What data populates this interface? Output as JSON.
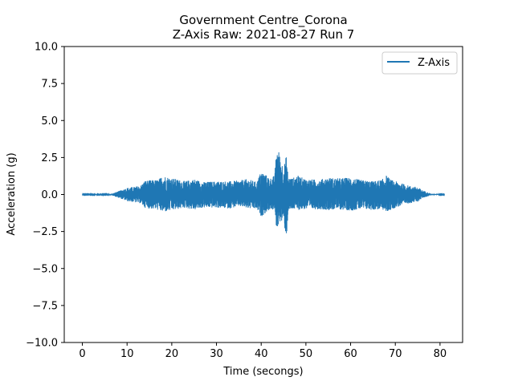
{
  "chart_data": {
    "type": "line",
    "title": "Government Centre_Corona",
    "subtitle": "Z-Axis Raw: 2021-08-27 Run 7",
    "xlabel": "Time (secongs)",
    "ylabel": "Acceleration (g)",
    "xlim": [
      -4.05,
      85.05
    ],
    "ylim": [
      -10.0,
      10.0
    ],
    "xticks": [
      0,
      10,
      20,
      30,
      40,
      50,
      60,
      70,
      80
    ],
    "xtick_labels": [
      "0",
      "10",
      "20",
      "30",
      "40",
      "50",
      "60",
      "70",
      "80"
    ],
    "yticks": [
      -10.0,
      -7.5,
      -5.0,
      -2.5,
      0.0,
      2.5,
      5.0,
      7.5,
      10.0
    ],
    "ytick_labels": [
      "−10.0",
      "−7.5",
      "−5.0",
      "−2.5",
      "0.0",
      "2.5",
      "5.0",
      "7.5",
      "10.0"
    ],
    "grid": false,
    "legend_position": "top-right",
    "series": [
      {
        "name": "Z-Axis",
        "color": "#1f77b4",
        "x_range": [
          0.0,
          81.0
        ],
        "envelope": {
          "time": [
            0,
            6,
            7,
            10,
            13,
            14,
            17,
            18,
            19,
            23,
            25,
            27,
            30,
            33,
            35,
            37,
            39,
            40,
            42,
            43,
            43.5,
            44,
            45,
            45.7,
            46,
            47,
            48,
            50,
            53,
            55,
            57,
            60,
            62,
            65,
            67,
            68,
            69,
            70,
            73,
            75,
            76,
            78,
            80,
            81
          ],
          "upper": [
            0.02,
            0.02,
            0.1,
            0.45,
            0.6,
            0.95,
            1.0,
            1.3,
            1.2,
            0.9,
            1.05,
            0.85,
            0.9,
            0.9,
            0.95,
            1.05,
            0.85,
            1.6,
            1.1,
            1.3,
            3.3,
            2.9,
            1.8,
            2.75,
            1.2,
            1.1,
            1.3,
            1.05,
            1.0,
            1.15,
            1.1,
            1.15,
            1.0,
            0.9,
            1.0,
            1.3,
            1.0,
            0.9,
            0.6,
            0.5,
            0.3,
            0.05,
            0.02,
            0.02
          ],
          "lower": [
            -0.02,
            -0.02,
            -0.1,
            -0.45,
            -0.6,
            -0.9,
            -1.05,
            -1.2,
            -1.15,
            -0.9,
            -1.05,
            -0.9,
            -0.9,
            -0.95,
            -0.8,
            -0.95,
            -1.0,
            -1.5,
            -1.0,
            -1.1,
            -2.55,
            -1.8,
            -1.95,
            -2.95,
            -1.2,
            -1.0,
            -1.05,
            -1.0,
            -1.0,
            -1.05,
            -1.0,
            -1.1,
            -1.0,
            -1.05,
            -1.0,
            -1.2,
            -1.05,
            -0.9,
            -0.6,
            -0.5,
            -0.25,
            -0.05,
            -0.02,
            -0.02
          ]
        }
      }
    ]
  }
}
